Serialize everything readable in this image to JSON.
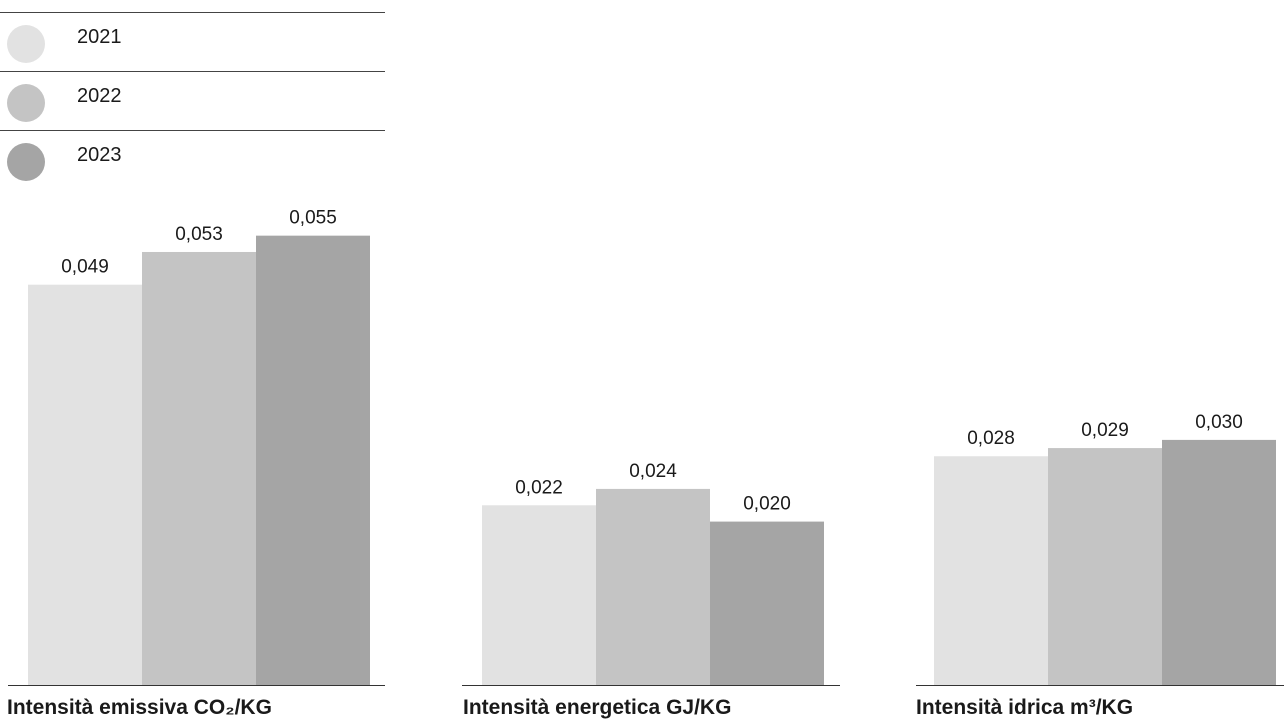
{
  "legend": [
    {
      "label": "2021",
      "color": "#e2e2e2"
    },
    {
      "label": "2022",
      "color": "#c4c4c4"
    },
    {
      "label": "2023",
      "color": "#a5a5a5"
    }
  ],
  "chart_data": [
    {
      "type": "bar",
      "title": "Intensità emissiva CO₂/KG",
      "categories": [
        "2021",
        "2022",
        "2023"
      ],
      "values": [
        0.049,
        0.053,
        0.055
      ],
      "value_labels": [
        "0,049",
        "0,053",
        "0,055"
      ],
      "colors": [
        "#e2e2e2",
        "#c4c4c4",
        "#a5a5a5"
      ]
    },
    {
      "type": "bar",
      "title": "Intensità energetica GJ/KG",
      "categories": [
        "2021",
        "2022",
        "2023"
      ],
      "values": [
        0.022,
        0.024,
        0.02
      ],
      "value_labels": [
        "0,022",
        "0,024",
        "0,020"
      ],
      "colors": [
        "#e2e2e2",
        "#c4c4c4",
        "#a5a5a5"
      ]
    },
    {
      "type": "bar",
      "title": "Intensità idrica m³/KG",
      "categories": [
        "2021",
        "2022",
        "2023"
      ],
      "values": [
        0.028,
        0.029,
        0.03
      ],
      "value_labels": [
        "0,028",
        "0,029",
        "0,030"
      ],
      "colors": [
        "#e2e2e2",
        "#c4c4c4",
        "#a5a5a5"
      ]
    }
  ]
}
